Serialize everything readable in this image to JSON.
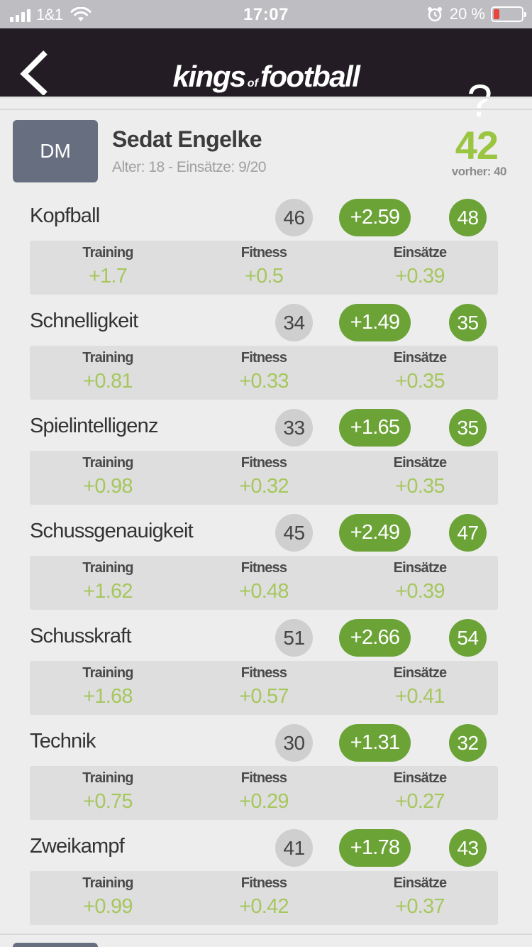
{
  "status_bar": {
    "carrier": "1&1",
    "time": "17:07",
    "battery_percent": "20 %",
    "battery_level": 0.2
  },
  "header": {
    "logo_kings": "kings",
    "logo_of": "of",
    "logo_football": "football",
    "help_label": "?"
  },
  "player": {
    "position": "DM",
    "name": "Sedat Engelke",
    "meta": "Alter: 18 - Einsätze: 9/20",
    "rating": "42",
    "previous": "vorher: 40"
  },
  "labels": {
    "training": "Training",
    "fitness": "Fitness",
    "einsaetze": "Einsätze"
  },
  "attributes": [
    {
      "name": "Kopfball",
      "current": "46",
      "gain": "+2.59",
      "new": "48",
      "training": "+1.7",
      "fitness": "+0.5",
      "einsaetze": "+0.39"
    },
    {
      "name": "Schnelligkeit",
      "current": "34",
      "gain": "+1.49",
      "new": "35",
      "training": "+0.81",
      "fitness": "+0.33",
      "einsaetze": "+0.35"
    },
    {
      "name": "Spielintelligenz",
      "current": "33",
      "gain": "+1.65",
      "new": "35",
      "training": "+0.98",
      "fitness": "+0.32",
      "einsaetze": "+0.35"
    },
    {
      "name": "Schussgenauigkeit",
      "current": "45",
      "gain": "+2.49",
      "new": "47",
      "training": "+1.62",
      "fitness": "+0.48",
      "einsaetze": "+0.39"
    },
    {
      "name": "Schusskraft",
      "current": "51",
      "gain": "+2.66",
      "new": "54",
      "training": "+1.68",
      "fitness": "+0.57",
      "einsaetze": "+0.41"
    },
    {
      "name": "Technik",
      "current": "30",
      "gain": "+1.31",
      "new": "32",
      "training": "+0.75",
      "fitness": "+0.29",
      "einsaetze": "+0.27"
    },
    {
      "name": "Zweikampf",
      "current": "41",
      "gain": "+1.78",
      "new": "43",
      "training": "+0.99",
      "fitness": "+0.42",
      "einsaetze": "+0.37"
    }
  ]
}
